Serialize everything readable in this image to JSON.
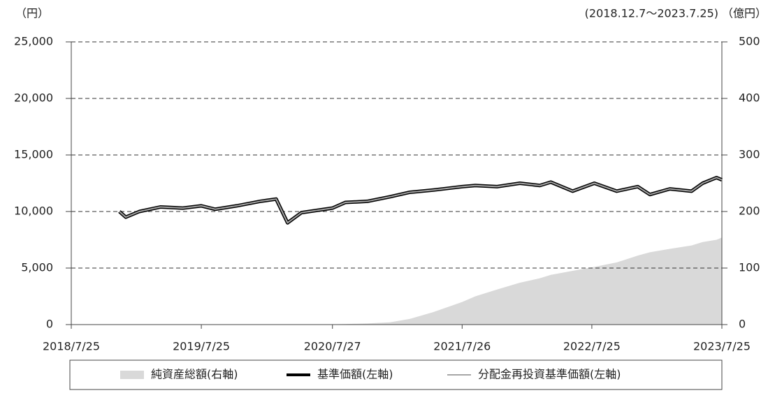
{
  "chart_data": {
    "type": "line",
    "subtitle": "(2018.12.7～2023.7.25)",
    "y_label": "（円）",
    "y2_label": "（億円）",
    "x": [
      "2018/12/7",
      "2018/12/25",
      "2019/2/1",
      "2019/4/1",
      "2019/6/3",
      "2019/7/25",
      "2019/9/2",
      "2019/11/1",
      "2020/1/6",
      "2020/2/20",
      "2020/3/23",
      "2020/5/1",
      "2020/7/27",
      "2020/9/1",
      "2020/11/2",
      "2021/1/4",
      "2021/3/1",
      "2021/5/6",
      "2021/7/26",
      "2021/9/1",
      "2021/11/1",
      "2022/1/4",
      "2022/3/1",
      "2022/4/1",
      "2022/6/1",
      "2022/8/1",
      "2022/10/3",
      "2022/12/1",
      "2023/1/4",
      "2023/3/1",
      "2023/5/1",
      "2023/6/1",
      "2023/7/10",
      "2023/7/25"
    ],
    "xlim": [
      "2018/7/25",
      "2023/7/25"
    ],
    "xticks": [
      "2018/7/25",
      "2019/7/25",
      "2020/7/27",
      "2021/7/26",
      "2022/7/25",
      "2023/7/25"
    ],
    "ylim": [
      0,
      25000
    ],
    "yticks": [
      0,
      {
        "value": 5000,
        "label": "5,000"
      },
      {
        "value": 10000,
        "label": "10,000"
      },
      {
        "value": 15000,
        "label": "15,000"
      },
      {
        "value": 20000,
        "label": "20,000"
      },
      {
        "value": 25000,
        "label": "25,000"
      }
    ],
    "y2lim": [
      0,
      500
    ],
    "y2ticks": [
      0,
      100,
      200,
      300,
      400,
      500
    ],
    "grid": true,
    "legend": "bottom",
    "series": [
      {
        "name": "純資産総額(右軸)",
        "color": "#d9d9d9",
        "kind": "area",
        "axis": "y2",
        "values": [
          0,
          0,
          0,
          0,
          0,
          0,
          0,
          0,
          0,
          0,
          0,
          0,
          0.5,
          1,
          2,
          4,
          10,
          22,
          40,
          50,
          62,
          74,
          82,
          88,
          95,
          102,
          110,
          122,
          128,
          134,
          140,
          146,
          150,
          154
        ]
      },
      {
        "name": "基準価額(左軸)",
        "color": "#000000",
        "values": [
          10000,
          9500,
          10000,
          10400,
          10300,
          10500,
          10200,
          10500,
          10900,
          11100,
          9000,
          9900,
          10300,
          10800,
          10900,
          11300,
          11700,
          11900,
          12200,
          12300,
          12200,
          12500,
          12300,
          12600,
          11800,
          12500,
          11800,
          12200,
          11500,
          12000,
          11800,
          12500,
          13000,
          12800
        ]
      },
      {
        "name": "分配金再投資基準価額(左軸)",
        "color": "#a6a6a6",
        "values": [
          10000,
          9500,
          10000,
          10400,
          10300,
          10500,
          10200,
          10500,
          10900,
          11100,
          9000,
          9900,
          10300,
          10800,
          10900,
          11300,
          11700,
          11900,
          12200,
          12300,
          12200,
          12500,
          12300,
          12600,
          11800,
          12500,
          11800,
          12200,
          11500,
          12000,
          11800,
          12500,
          13000,
          12800
        ]
      }
    ]
  }
}
